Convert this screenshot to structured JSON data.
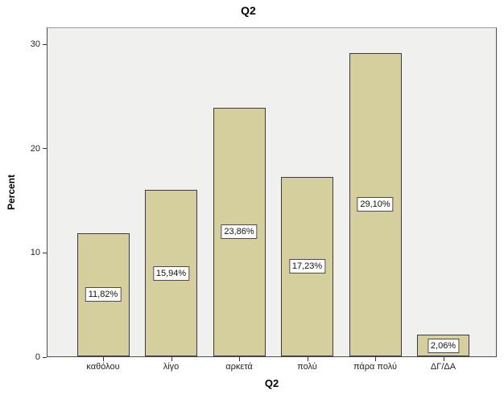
{
  "chart_data": {
    "type": "bar",
    "title": "Q2",
    "xlabel": "Q2",
    "ylabel": "Percent",
    "categories": [
      "καθόλου",
      "λίγο",
      "αρκετά",
      "πολύ",
      "πάρα πολύ",
      "ΔΓ/ΔΑ"
    ],
    "values": [
      11.82,
      15.94,
      23.86,
      17.23,
      29.1,
      2.06
    ],
    "value_labels": [
      "11,82%",
      "15,94%",
      "23,86%",
      "17,23%",
      "29,10%",
      "2,06%"
    ],
    "yticks": [
      0,
      10,
      20,
      30
    ],
    "ylim": [
      0,
      31.62
    ],
    "grid": false,
    "legend": false,
    "colors": {
      "bar_fill": "#d5cf9d",
      "bar_border": "#3b3b3b",
      "plot_background": "#f0f0ef",
      "frame_border": "#4d4d4d",
      "label_box_background": "#ffffff",
      "label_box_border": "#4a4a4a",
      "text": "#232323"
    }
  }
}
